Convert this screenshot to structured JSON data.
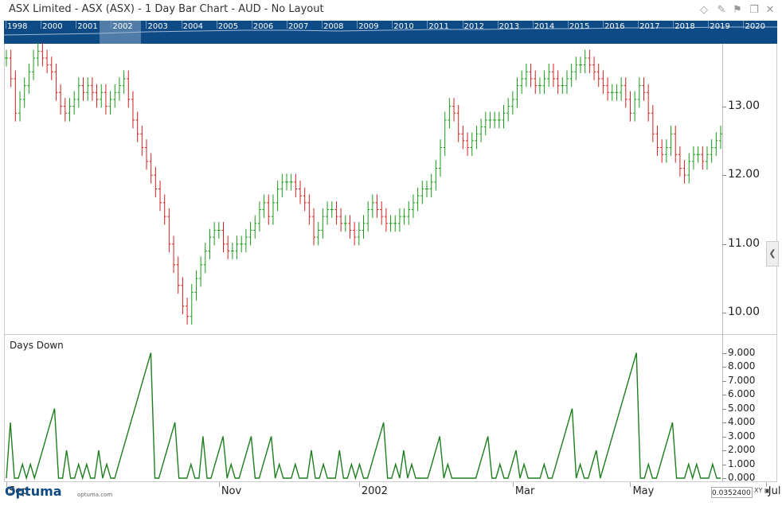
{
  "window": {
    "title": "ASX Limited - ASX (ASX) - 1 Day Bar Chart - AUD - No Layout",
    "icons": [
      "diamond-icon",
      "pin-icon",
      "restore-icon",
      "close-icon"
    ]
  },
  "navigator": {
    "years": [
      "1998",
      "2000",
      "2001",
      "2002",
      "2003",
      "2004",
      "2005",
      "2006",
      "2007",
      "2008",
      "2009",
      "2010",
      "2011",
      "2012",
      "2013",
      "2014",
      "2015",
      "2016",
      "2017",
      "2018",
      "2019",
      "2020"
    ]
  },
  "logo": {
    "name": "Optuma",
    "url": "optuma.com"
  },
  "crosshair_value": "0.0352400",
  "xy_label": "XY",
  "colors": {
    "up": "#1a9a1a",
    "down": "#d22020",
    "indicator": "#1f7f1f",
    "navigator_bg": "#0e4a85"
  },
  "chart_data": [
    {
      "type": "ohlc",
      "series_name": "ASX",
      "x_labels": [
        "Sep",
        "Nov",
        "2002",
        "Mar",
        "May",
        "Jul"
      ],
      "ylim": [
        9.75,
        13.85
      ],
      "yticks": [
        "10.00",
        "11.00",
        "12.00",
        "13.00"
      ],
      "closes": [
        13.7,
        13.4,
        12.9,
        13.1,
        13.3,
        13.5,
        13.7,
        13.8,
        13.7,
        13.6,
        13.5,
        13.2,
        13.0,
        12.9,
        13.0,
        13.1,
        13.3,
        13.2,
        13.3,
        13.2,
        13.1,
        13.2,
        13.0,
        13.1,
        13.2,
        13.3,
        13.4,
        13.1,
        12.8,
        12.6,
        12.4,
        12.2,
        12.0,
        11.8,
        11.6,
        11.4,
        11.0,
        10.7,
        10.4,
        10.1,
        9.95,
        10.3,
        10.5,
        10.7,
        10.9,
        11.1,
        11.2,
        11.2,
        11.0,
        10.9,
        10.9,
        11.0,
        11.0,
        11.1,
        11.2,
        11.3,
        11.5,
        11.6,
        11.4,
        11.6,
        11.8,
        11.9,
        11.9,
        11.9,
        11.8,
        11.7,
        11.6,
        11.4,
        11.1,
        11.2,
        11.4,
        11.5,
        11.5,
        11.4,
        11.3,
        11.3,
        11.2,
        11.1,
        11.2,
        11.3,
        11.5,
        11.6,
        11.5,
        11.4,
        11.3,
        11.3,
        11.3,
        11.4,
        11.4,
        11.5,
        11.6,
        11.7,
        11.8,
        11.8,
        11.9,
        12.1,
        12.4,
        12.8,
        13.0,
        12.9,
        12.6,
        12.5,
        12.4,
        12.5,
        12.6,
        12.7,
        12.8,
        12.8,
        12.8,
        12.8,
        12.9,
        13.0,
        13.1,
        13.3,
        13.4,
        13.5,
        13.4,
        13.3,
        13.3,
        13.4,
        13.5,
        13.4,
        13.3,
        13.3,
        13.4,
        13.5,
        13.6,
        13.6,
        13.7,
        13.6,
        13.5,
        13.4,
        13.3,
        13.2,
        13.2,
        13.2,
        13.3,
        13.1,
        12.9,
        13.1,
        13.3,
        13.2,
        12.9,
        12.6,
        12.4,
        12.3,
        12.4,
        12.6,
        12.3,
        12.1,
        12.0,
        12.2,
        12.3,
        12.3,
        12.2,
        12.3,
        12.4,
        12.5,
        12.6
      ],
      "x_label_bars": [
        0,
        47,
        78,
        112,
        138,
        168
      ]
    },
    {
      "type": "line",
      "title": "Days Down",
      "ylim": [
        0,
        9.2
      ],
      "yticks": [
        "0.000",
        "1.000",
        "2.000",
        "3.000",
        "4.000",
        "5.000",
        "6.000",
        "7.000",
        "8.000",
        "9.000"
      ],
      "values": [
        0,
        4,
        0,
        0,
        1,
        0,
        1,
        0,
        1,
        2,
        3,
        4,
        5,
        0,
        0,
        2,
        0,
        0,
        1,
        0,
        1,
        0,
        0,
        2,
        0,
        1,
        0,
        0,
        1,
        2,
        3,
        4,
        5,
        6,
        7,
        8,
        9,
        0,
        0,
        1,
        2,
        3,
        4,
        0,
        0,
        0,
        1,
        0,
        0,
        3,
        0,
        0,
        1,
        2,
        3,
        0,
        1,
        0,
        0,
        1,
        2,
        3,
        0,
        0,
        1,
        2,
        3,
        0,
        1,
        0,
        0,
        0,
        1,
        0,
        0,
        0,
        2,
        0,
        0,
        1,
        0,
        0,
        0,
        2,
        0,
        0,
        1,
        0,
        1,
        0,
        0,
        1,
        2,
        3,
        4,
        0,
        0,
        1,
        0,
        2,
        0,
        1,
        0,
        0,
        0,
        0,
        1,
        2,
        3,
        0,
        1,
        0,
        0,
        0,
        0,
        0,
        0,
        0,
        1,
        2,
        3,
        0,
        0,
        1,
        0,
        0,
        1,
        2,
        0,
        1,
        0,
        0,
        0,
        0,
        1,
        0,
        0,
        1,
        2,
        3,
        4,
        5,
        0,
        1,
        0,
        0,
        1,
        2,
        0,
        1,
        2,
        3,
        4,
        5,
        6,
        7,
        8,
        9,
        0,
        0,
        1,
        0,
        0,
        1,
        2,
        3,
        4,
        0,
        0,
        0,
        1,
        0,
        1,
        0,
        0,
        0,
        1,
        0,
        0
      ]
    }
  ]
}
